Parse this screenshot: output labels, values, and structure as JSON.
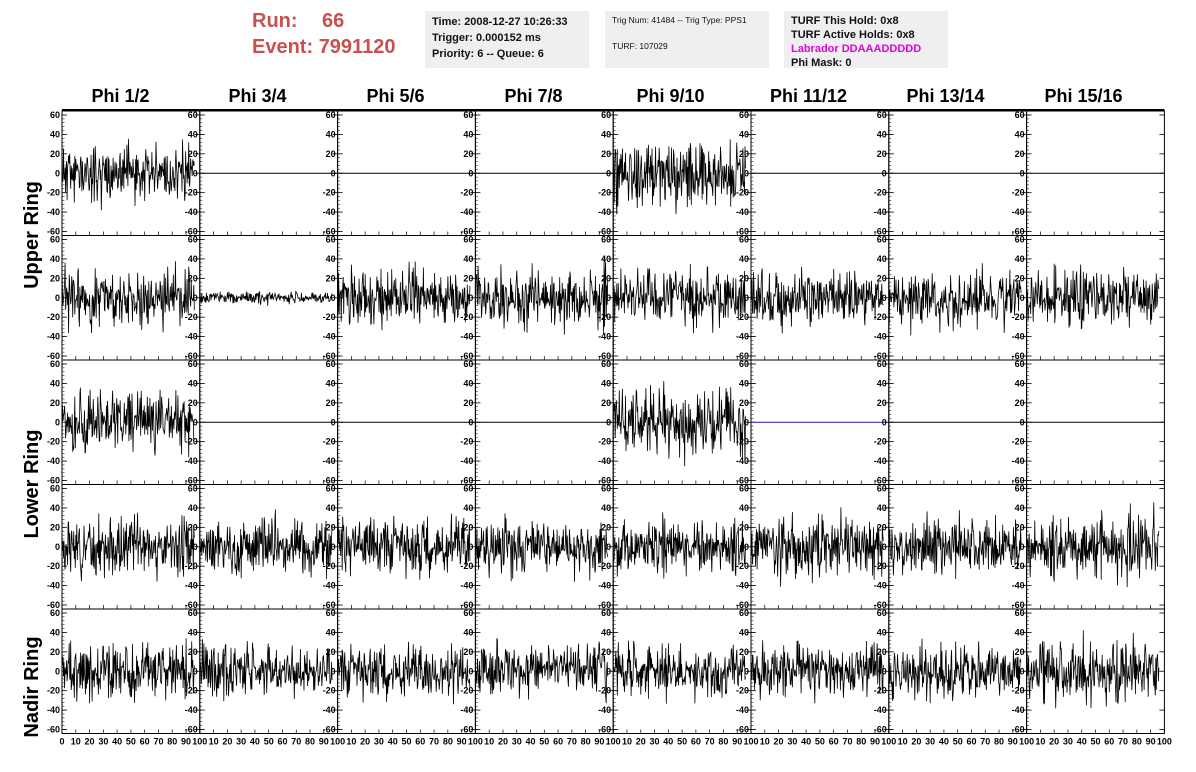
{
  "header": {
    "run_label": "Run:",
    "run_value": "66",
    "event_label": "Event:",
    "event_value": "7991120"
  },
  "info_time": {
    "time": "Time: 2008-12-27 10:26:33",
    "trigger": "Trigger: 0.000152 ms",
    "priority": "Priority: 6 -- Queue: 6"
  },
  "info_trig": {
    "trig": "Trig Num: 41484 -- Trig Type: PPS1",
    "turf": "TURF: 107029"
  },
  "info_turf": {
    "hold": "TURF This Hold: 0x8",
    "active": "TURF Active Holds: 0x8",
    "labrador": "Labrador DDAAADDDDD",
    "phimask": "Phi Mask: 0"
  },
  "columns": [
    "Phi 1/2",
    "Phi 3/4",
    "Phi 5/6",
    "Phi 7/8",
    "Phi 9/10",
    "Phi 11/12",
    "Phi 13/14",
    "Phi 15/16"
  ],
  "rings": [
    "Upper Ring",
    "Lower Ring",
    "Nadir Ring"
  ],
  "colors": {
    "trace": "#000000",
    "flat_blue": "#2222aa",
    "run_text": "#c8504f",
    "labrador": "#e000e0",
    "info_bg": "#efefef"
  },
  "chart_data": {
    "type": "line",
    "layout": "grid of small waveform panels, 5 rows by 8 columns",
    "xlim": [
      0,
      100
    ],
    "ylim": [
      -60,
      60
    ],
    "y_ticks": [
      60,
      40,
      20,
      0,
      -20,
      -40,
      -60
    ],
    "x_ticks": [
      0,
      10,
      20,
      30,
      40,
      50,
      60,
      70,
      80,
      90,
      100
    ],
    "x_tick_labels_last_column": [
      "0",
      "10",
      "20",
      "30",
      "40",
      "50",
      "60",
      "70",
      "80",
      "90",
      "100"
    ],
    "x_tick_labels_other_columns": [
      "10",
      "20",
      "30",
      "40",
      "50",
      "60",
      "70",
      "80",
      "90",
      "100"
    ],
    "y_tick_labels": [
      "60",
      "40",
      "20",
      "0",
      "-20",
      "-40",
      "-60"
    ],
    "grid": false,
    "rows": [
      {
        "ring": "Upper Ring",
        "panels": [
          {
            "kind": "noise",
            "amplitude": 14,
            "seed": 11
          },
          {
            "kind": "flat",
            "amplitude": 0,
            "seed": 0
          },
          {
            "kind": "flat",
            "amplitude": 0,
            "seed": 0
          },
          {
            "kind": "flat",
            "amplitude": 0,
            "seed": 0
          },
          {
            "kind": "noise",
            "amplitude": 18,
            "seed": 19
          },
          {
            "kind": "flat",
            "amplitude": 0,
            "seed": 0
          },
          {
            "kind": "flat",
            "amplitude": 0,
            "seed": 0
          },
          {
            "kind": "flat",
            "amplitude": 0,
            "seed": 0
          }
        ]
      },
      {
        "ring": "Upper Ring",
        "panels": [
          {
            "kind": "noise",
            "amplitude": 15,
            "seed": 23
          },
          {
            "kind": "noise",
            "amplitude": 3,
            "seed": 29
          },
          {
            "kind": "noise",
            "amplitude": 14,
            "seed": 31
          },
          {
            "kind": "noise",
            "amplitude": 15,
            "seed": 37
          },
          {
            "kind": "noise",
            "amplitude": 14,
            "seed": 41
          },
          {
            "kind": "noise",
            "amplitude": 14,
            "seed": 43
          },
          {
            "kind": "noise",
            "amplitude": 14,
            "seed": 47
          },
          {
            "kind": "noise",
            "amplitude": 14,
            "seed": 53
          }
        ]
      },
      {
        "ring": "Lower Ring",
        "panels": [
          {
            "kind": "noise",
            "amplitude": 16,
            "seed": 59
          },
          {
            "kind": "flat",
            "amplitude": 0,
            "seed": 0
          },
          {
            "kind": "flat",
            "amplitude": 0,
            "seed": 0
          },
          {
            "kind": "flat",
            "amplitude": 0,
            "seed": 0
          },
          {
            "kind": "noise",
            "amplitude": 17,
            "seed": 61
          },
          {
            "kind": "flat_blue",
            "amplitude": 0,
            "seed": 0
          },
          {
            "kind": "flat",
            "amplitude": 0,
            "seed": 0
          },
          {
            "kind": "flat",
            "amplitude": 0,
            "seed": 0
          }
        ]
      },
      {
        "ring": "Lower Ring",
        "panels": [
          {
            "kind": "noise",
            "amplitude": 14,
            "seed": 67
          },
          {
            "kind": "noise",
            "amplitude": 14,
            "seed": 71
          },
          {
            "kind": "noise",
            "amplitude": 14,
            "seed": 73
          },
          {
            "kind": "noise",
            "amplitude": 14,
            "seed": 79
          },
          {
            "kind": "noise",
            "amplitude": 14,
            "seed": 83
          },
          {
            "kind": "noise",
            "amplitude": 15,
            "seed": 89
          },
          {
            "kind": "noise",
            "amplitude": 14,
            "seed": 97
          },
          {
            "kind": "noise",
            "amplitude": 16,
            "seed": 101
          }
        ]
      },
      {
        "ring": "Nadir Ring",
        "panels": [
          {
            "kind": "noise",
            "amplitude": 14,
            "seed": 103
          },
          {
            "kind": "noise",
            "amplitude": 13,
            "seed": 107
          },
          {
            "kind": "noise",
            "amplitude": 13,
            "seed": 109
          },
          {
            "kind": "noise",
            "amplitude": 13,
            "seed": 113
          },
          {
            "kind": "noise",
            "amplitude": 14,
            "seed": 127
          },
          {
            "kind": "noise",
            "amplitude": 13,
            "seed": 131
          },
          {
            "kind": "noise",
            "amplitude": 14,
            "seed": 137
          },
          {
            "kind": "noise",
            "amplitude": 16,
            "seed": 139
          }
        ]
      }
    ]
  }
}
